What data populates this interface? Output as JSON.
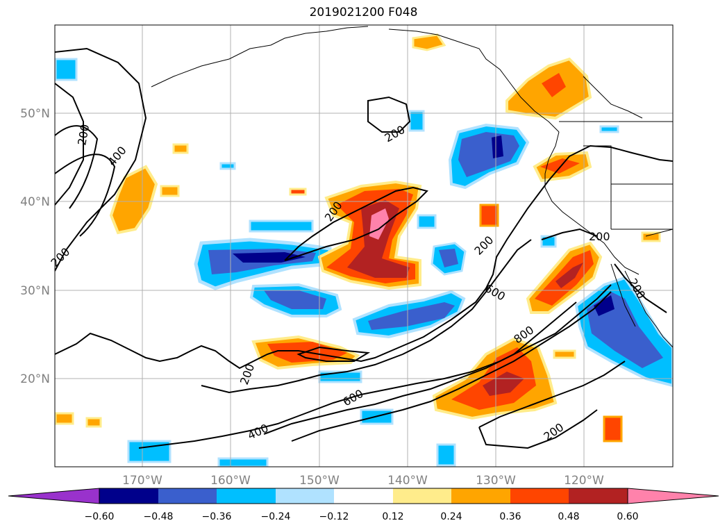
{
  "title": "2019021200 F048",
  "map": {
    "lat_labels": [
      "50°N",
      "40°N",
      "30°N",
      "20°N"
    ],
    "lon_labels": [
      "170°W",
      "160°W",
      "150°W",
      "140°W",
      "130°W",
      "120°W"
    ],
    "contour_labels": [
      "200",
      "400",
      "200",
      "200",
      "200",
      "200",
      "600",
      "800",
      "200",
      "200",
      "200",
      "600",
      "400",
      "200"
    ]
  },
  "colorbar": {
    "colors": [
      "#9932cc",
      "#00008b",
      "#3a5fcd",
      "#00bfff",
      "#b0e2ff",
      "#ffffff",
      "#ffec8b",
      "#ffa500",
      "#ff4500",
      "#b22222",
      "#ff82ab"
    ],
    "tick_labels": [
      "−0.60",
      "−0.48",
      "−0.36",
      "−0.24",
      "−0.12",
      "0.12",
      "0.24",
      "0.36",
      "0.48",
      "0.60"
    ]
  }
}
